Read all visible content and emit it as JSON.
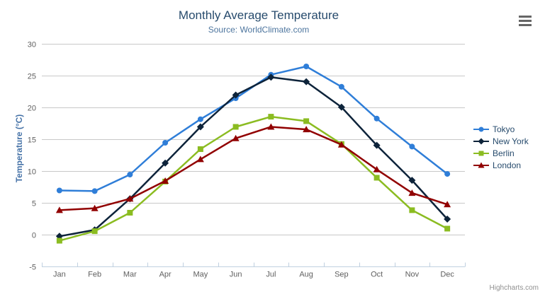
{
  "header": {
    "title": "Monthly Average Temperature",
    "subtitle": "Source: WorldClimate.com"
  },
  "credit": "Highcharts.com",
  "export_menu": {
    "icon": "hamburger-icon"
  },
  "chart_data": {
    "type": "line",
    "title": "Monthly Average Temperature",
    "subtitle": "Source: WorldClimate.com",
    "xlabel": "",
    "ylabel": "Temperature (°C)",
    "ylim": [
      -5,
      30
    ],
    "ytick_step": 5,
    "grid": true,
    "legend_position": "right",
    "categories": [
      "Jan",
      "Feb",
      "Mar",
      "Apr",
      "May",
      "Jun",
      "Jul",
      "Aug",
      "Sep",
      "Oct",
      "Nov",
      "Dec"
    ],
    "series": [
      {
        "name": "Tokyo",
        "color": "#2f7ed8",
        "marker": "circle",
        "values": [
          7.0,
          6.9,
          9.5,
          14.5,
          18.2,
          21.5,
          25.2,
          26.5,
          23.3,
          18.3,
          13.9,
          9.6
        ]
      },
      {
        "name": "New York",
        "color": "#0d233a",
        "marker": "diamond",
        "values": [
          -0.2,
          0.8,
          5.7,
          11.3,
          17.0,
          22.0,
          24.8,
          24.1,
          20.1,
          14.1,
          8.6,
          2.5
        ]
      },
      {
        "name": "Berlin",
        "color": "#8bbc21",
        "marker": "square",
        "values": [
          -0.9,
          0.6,
          3.5,
          8.4,
          13.5,
          17.0,
          18.6,
          17.9,
          14.3,
          9.0,
          3.9,
          1.0
        ]
      },
      {
        "name": "London",
        "color": "#910000",
        "marker": "triangle",
        "values": [
          3.9,
          4.2,
          5.7,
          8.5,
          11.9,
          15.2,
          17.0,
          16.6,
          14.2,
          10.3,
          6.6,
          4.8
        ]
      }
    ],
    "style_colors": {
      "grid": "#c8c8c8",
      "axis_line": "#c0d0e0",
      "tick_label": "#606060",
      "title": "#274b6d",
      "subtitle": "#4d759e",
      "legend_text": "#274b6d"
    }
  }
}
